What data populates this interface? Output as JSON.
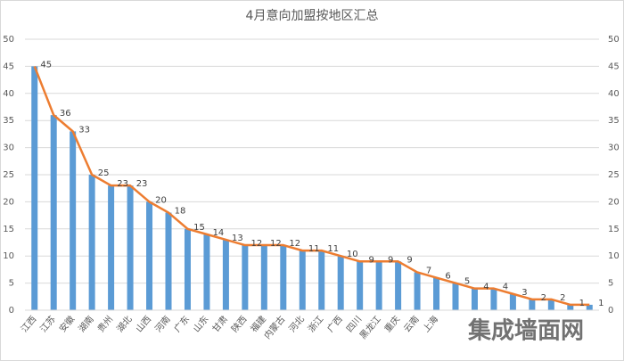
{
  "chart_data": {
    "type": "bar-line",
    "title": "4月意向加盟按地区汇总",
    "categories": [
      "江西",
      "江苏",
      "安徽",
      "湖南",
      "贵州",
      "湖北",
      "山西",
      "河南",
      "广东",
      "山东",
      "甘肃",
      "陕西",
      "福建",
      "内蒙古",
      "河北",
      "浙江",
      "广西",
      "四川",
      "黑龙江",
      "重庆",
      "云南",
      "上海",
      null,
      null,
      null,
      null,
      null,
      null,
      null,
      null
    ],
    "series": [
      {
        "type": "bar",
        "color": "#5b9bd5",
        "values": [
          45,
          36,
          33,
          25,
          23,
          23,
          20,
          18,
          15,
          14,
          13,
          12,
          12,
          12,
          11,
          11,
          10,
          9,
          9,
          9,
          7,
          6,
          5,
          4,
          4,
          3,
          2,
          2,
          1,
          1
        ]
      },
      {
        "type": "line",
        "color": "#ed7d31",
        "axis": "y2",
        "values": [
          45,
          36,
          33,
          25,
          23,
          23,
          20,
          18,
          15,
          14,
          13,
          12,
          12,
          12,
          11,
          11,
          10,
          9,
          9,
          9,
          7,
          6,
          5,
          4,
          4,
          3,
          2,
          2,
          1,
          1
        ]
      }
    ],
    "ylim": [
      0,
      50
    ],
    "yticks": [
      0,
      5,
      10,
      15,
      20,
      25,
      30,
      35,
      40,
      45,
      50
    ],
    "y2lim": [
      0,
      50
    ],
    "y2ticks": [
      0,
      5,
      10,
      15,
      20,
      25,
      30,
      35,
      40,
      45,
      50
    ],
    "grid": true,
    "watermark": "集成墙面网"
  }
}
